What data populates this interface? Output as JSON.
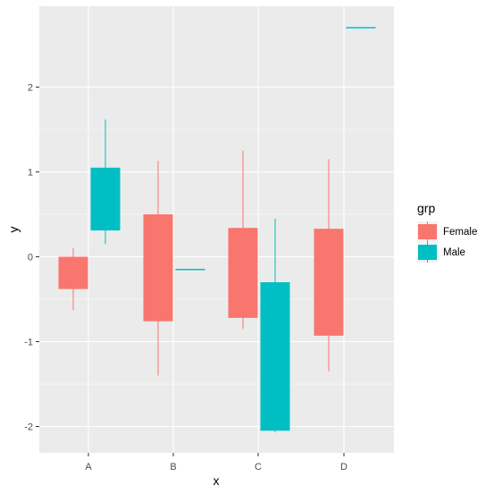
{
  "chart_data": {
    "type": "boxplot",
    "categories": [
      "A",
      "B",
      "C",
      "D"
    ],
    "xlabel": "x",
    "ylabel": "y",
    "ylim": [
      -2.3,
      2.85
    ],
    "y_ticks": [
      -2,
      -1,
      0,
      1,
      2
    ],
    "grid": true,
    "legend": {
      "title": "grp",
      "position": "right",
      "entries": [
        {
          "name": "Female",
          "color": "#F8766D"
        },
        {
          "name": "Male",
          "color": "#00BFC4"
        }
      ]
    },
    "series": [
      {
        "name": "Female",
        "color": "#F8766D",
        "boxes": [
          {
            "category": "A",
            "lower": -0.38,
            "upper": 0.0,
            "whisker_low": -0.63,
            "whisker_high": 0.1
          },
          {
            "category": "B",
            "lower": -0.76,
            "upper": 0.5,
            "whisker_low": -1.4,
            "whisker_high": 1.13
          },
          {
            "category": "C",
            "lower": -0.72,
            "upper": 0.34,
            "whisker_low": -0.85,
            "whisker_high": 1.25
          },
          {
            "category": "D",
            "lower": -0.93,
            "upper": 0.33,
            "whisker_low": -1.35,
            "whisker_high": 1.15
          }
        ]
      },
      {
        "name": "Male",
        "color": "#00BFC4",
        "boxes": [
          {
            "category": "A",
            "lower": 0.31,
            "upper": 1.05,
            "whisker_low": 0.15,
            "whisker_high": 1.62
          },
          {
            "category": "B",
            "lower": -0.15,
            "upper": -0.15,
            "whisker_low": -0.15,
            "whisker_high": -0.15
          },
          {
            "category": "C",
            "lower": -2.05,
            "upper": -0.3,
            "whisker_low": -2.07,
            "whisker_high": 0.45
          },
          {
            "category": "D",
            "lower": 2.7,
            "upper": 2.7,
            "whisker_low": 2.7,
            "whisker_high": 2.7
          }
        ]
      }
    ]
  }
}
